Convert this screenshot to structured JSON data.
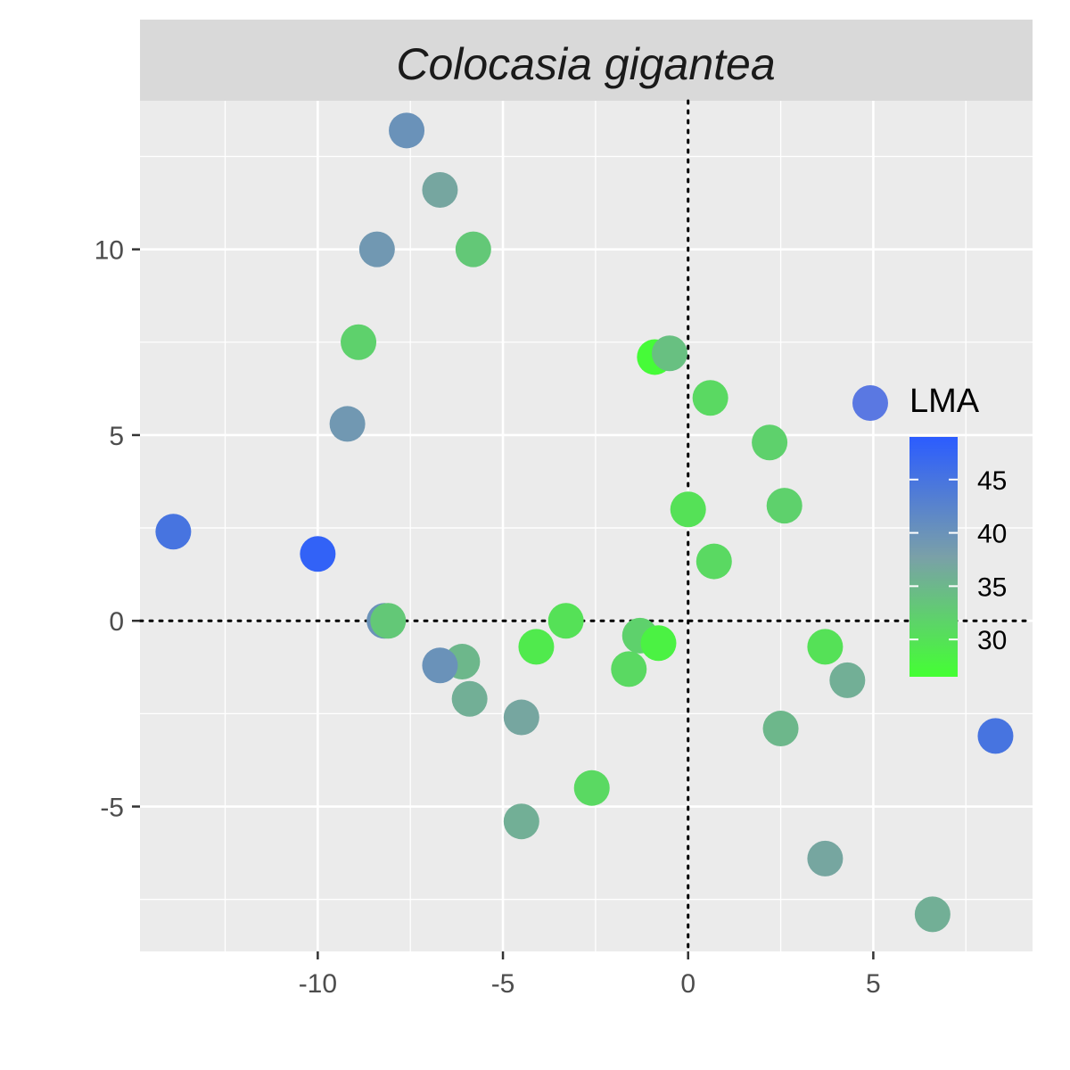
{
  "chart_data": {
    "type": "scatter",
    "title": "Colocasia gigantea",
    "xlabel": "",
    "ylabel": "",
    "xlim": [
      -14.8,
      9.3
    ],
    "ylim": [
      -8.9,
      14.0
    ],
    "x_ticks": [
      -10,
      -5,
      0,
      5
    ],
    "y_ticks": [
      -5,
      0,
      5,
      10
    ],
    "x_tick_labels": [
      "-10",
      "-5",
      "0",
      "5"
    ],
    "y_tick_labels": [
      "-5",
      "0",
      "5",
      "10"
    ],
    "x_minor_gridlines": [
      -12.5,
      -7.5,
      -2.5,
      2.5,
      7.5
    ],
    "y_minor_gridlines": [
      -7.5,
      -2.5,
      2.5,
      7.5,
      12.5
    ],
    "reference_lines": {
      "x": 0,
      "y": 0,
      "style": "dotted"
    },
    "grid": true,
    "legend": {
      "title": "LMA",
      "placement": "right-inside",
      "range": [
        26.5,
        49
      ],
      "ticks": [
        30,
        35,
        40,
        45
      ],
      "tick_labels": [
        "30",
        "35",
        "40",
        "45"
      ],
      "low_color": "#44ff33",
      "high_color": "#2b5cff",
      "key_point_color": "#5a78e2"
    },
    "series": [
      {
        "points": [
          {
            "x": -7.6,
            "y": 13.2,
            "lma": 40
          },
          {
            "x": -6.7,
            "y": 11.6,
            "lma": 37
          },
          {
            "x": -8.4,
            "y": 10.0,
            "lma": 39
          },
          {
            "x": -5.8,
            "y": 10.0,
            "lma": 33
          },
          {
            "x": -8.9,
            "y": 7.5,
            "lma": 32
          },
          {
            "x": -9.2,
            "y": 5.3,
            "lma": 39
          },
          {
            "x": -13.9,
            "y": 2.4,
            "lma": 45
          },
          {
            "x": -10.0,
            "y": 1.8,
            "lma": 48
          },
          {
            "x": -8.2,
            "y": 0.0,
            "lma": 40
          },
          {
            "x": -8.1,
            "y": 0.0,
            "lma": 33
          },
          {
            "x": -6.1,
            "y": -1.1,
            "lma": 35
          },
          {
            "x": -6.7,
            "y": -1.2,
            "lma": 40
          },
          {
            "x": -5.9,
            "y": -2.1,
            "lma": 36
          },
          {
            "x": -4.5,
            "y": -2.6,
            "lma": 37
          },
          {
            "x": -4.5,
            "y": -5.4,
            "lma": 36
          },
          {
            "x": -4.1,
            "y": -0.7,
            "lma": 29
          },
          {
            "x": -3.3,
            "y": 0.0,
            "lma": 30
          },
          {
            "x": -2.6,
            "y": -4.5,
            "lma": 31
          },
          {
            "x": -1.6,
            "y": -1.3,
            "lma": 31
          },
          {
            "x": -1.3,
            "y": -0.4,
            "lma": 32
          },
          {
            "x": -0.8,
            "y": -0.6,
            "lma": 28
          },
          {
            "x": -0.9,
            "y": 7.1,
            "lma": 27
          },
          {
            "x": -0.5,
            "y": 7.2,
            "lma": 34
          },
          {
            "x": 0.0,
            "y": 3.0,
            "lma": 30
          },
          {
            "x": 0.6,
            "y": 6.0,
            "lma": 31
          },
          {
            "x": 0.7,
            "y": 1.6,
            "lma": 31
          },
          {
            "x": 2.2,
            "y": 4.8,
            "lma": 32
          },
          {
            "x": 2.6,
            "y": 3.1,
            "lma": 32
          },
          {
            "x": 2.5,
            "y": -2.9,
            "lma": 35
          },
          {
            "x": 3.7,
            "y": -0.7,
            "lma": 30
          },
          {
            "x": 4.3,
            "y": -1.6,
            "lma": 36
          },
          {
            "x": 3.7,
            "y": -6.4,
            "lma": 37
          },
          {
            "x": 6.6,
            "y": -7.9,
            "lma": 36
          },
          {
            "x": 8.3,
            "y": -3.1,
            "lma": 45
          }
        ]
      }
    ]
  }
}
